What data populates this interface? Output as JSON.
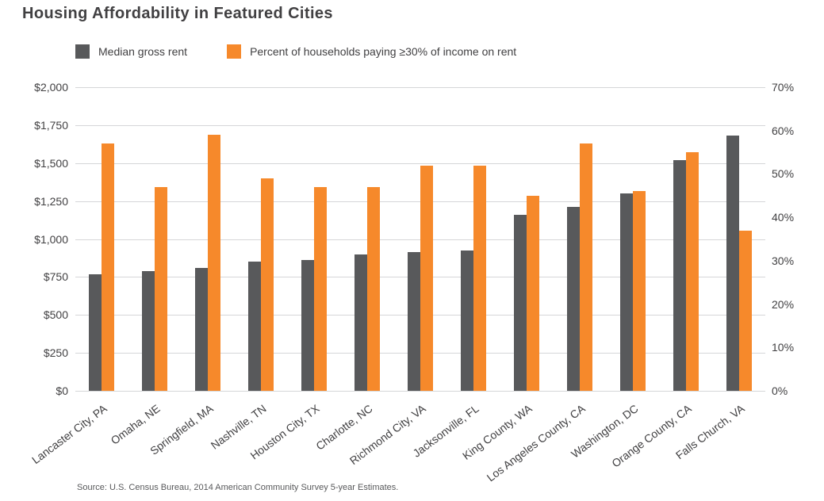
{
  "title": "Housing Affordability in Featured Cities",
  "legend": [
    {
      "label": "Median gross rent",
      "color": "#58595B"
    },
    {
      "label": "Percent of households paying ≥30% of income on rent",
      "color": "#F6892B"
    }
  ],
  "source": "Source: U.S. Census Bureau, 2014 American Community Survey 5-year Estimates.",
  "chart_data": {
    "type": "bar",
    "title": "Housing Affordability in Featured Cities",
    "categories": [
      "Lancaster City, PA",
      "Omaha, NE",
      "Springfield, MA",
      "Nashville, TN",
      "Houston City, TX",
      "Charlotte, NC",
      "Richmond City, VA",
      "Jacksonville, FL",
      "King County, WA",
      "Los Angeles County, CA",
      "Washington, DC",
      "Orange County, CA",
      "Falls Church, VA"
    ],
    "series": [
      {
        "name": "Median gross rent",
        "axis": "left",
        "color": "#58595B",
        "values": [
          770,
          790,
          810,
          850,
          860,
          900,
          915,
          925,
          1160,
          1210,
          1300,
          1520,
          1680
        ]
      },
      {
        "name": "Percent of households paying ≥30% of income on rent",
        "axis": "right",
        "color": "#F6892B",
        "values": [
          57,
          47,
          59,
          49,
          47,
          47,
          52,
          52,
          45,
          57,
          46,
          55,
          37
        ]
      }
    ],
    "left_axis": {
      "min": 0,
      "max": 2000,
      "step": 250,
      "tick_labels": [
        "$0",
        "$250",
        "$500",
        "$750",
        "$1,000",
        "$1,250",
        "$1,500",
        "$1,750",
        "$2,000"
      ]
    },
    "right_axis": {
      "min": 0,
      "max": 70,
      "step": 10,
      "tick_labels": [
        "0%",
        "10%",
        "20%",
        "30%",
        "40%",
        "50%",
        "60%",
        "70%"
      ]
    },
    "grid": true,
    "legend_position": "top"
  }
}
